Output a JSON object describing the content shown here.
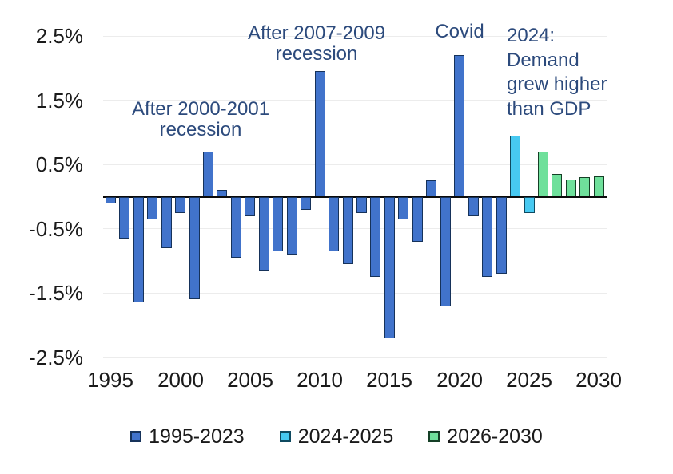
{
  "chart_data": {
    "type": "bar",
    "title": "",
    "ylim": [
      -2.5,
      2.5
    ],
    "grid": true,
    "legend_position": "bottom",
    "base_year": 1995,
    "y_tick_labels": [
      "2.5%",
      "1.5%",
      "0.5%",
      "-0.5%",
      "-1.5%",
      "-2.5%"
    ],
    "x_tick_labels": [
      "1995",
      "2000",
      "2005",
      "2010",
      "2015",
      "2020",
      "2025",
      "2030"
    ],
    "annotation_color": "#2c4a7c",
    "series": [
      {
        "name": "1995-2023",
        "color": "#4173cb",
        "border_color": "#16325a",
        "start_year": 1995,
        "values": [
          -0.1,
          -0.65,
          -1.65,
          -0.35,
          -0.8,
          -0.25,
          -1.6,
          0.7,
          0.1,
          -0.95,
          -0.3,
          -1.15,
          -0.85,
          -0.9,
          -0.2,
          1.95,
          -0.85,
          -1.05,
          -0.25,
          -1.25,
          -2.2,
          -0.35,
          -0.7,
          0.25,
          -1.7,
          2.2,
          -0.3,
          -1.25,
          -1.2
        ]
      },
      {
        "name": "2024-2025",
        "color": "#47c9f1",
        "border_color": "#0f4a60",
        "start_year": 2024,
        "values": [
          0.95,
          -0.25
        ]
      },
      {
        "name": "2026-2030",
        "color": "#6fe09b",
        "border_color": "#153f26",
        "start_year": 2026,
        "values": [
          0.7,
          0.35,
          0.27,
          0.3,
          0.32
        ]
      }
    ],
    "annotations": [
      {
        "id": "after-2000-2001-recession",
        "lines": [
          "After 2000-2001",
          "recession"
        ]
      },
      {
        "id": "after-2007-2009-recession",
        "lines": [
          "After 2007-2009",
          "recession"
        ]
      },
      {
        "id": "covid",
        "lines": [
          "Covid"
        ]
      },
      {
        "id": "2024-demand",
        "lines": [
          "2024:",
          "Demand",
          "grew higher",
          "than GDP"
        ]
      }
    ]
  }
}
